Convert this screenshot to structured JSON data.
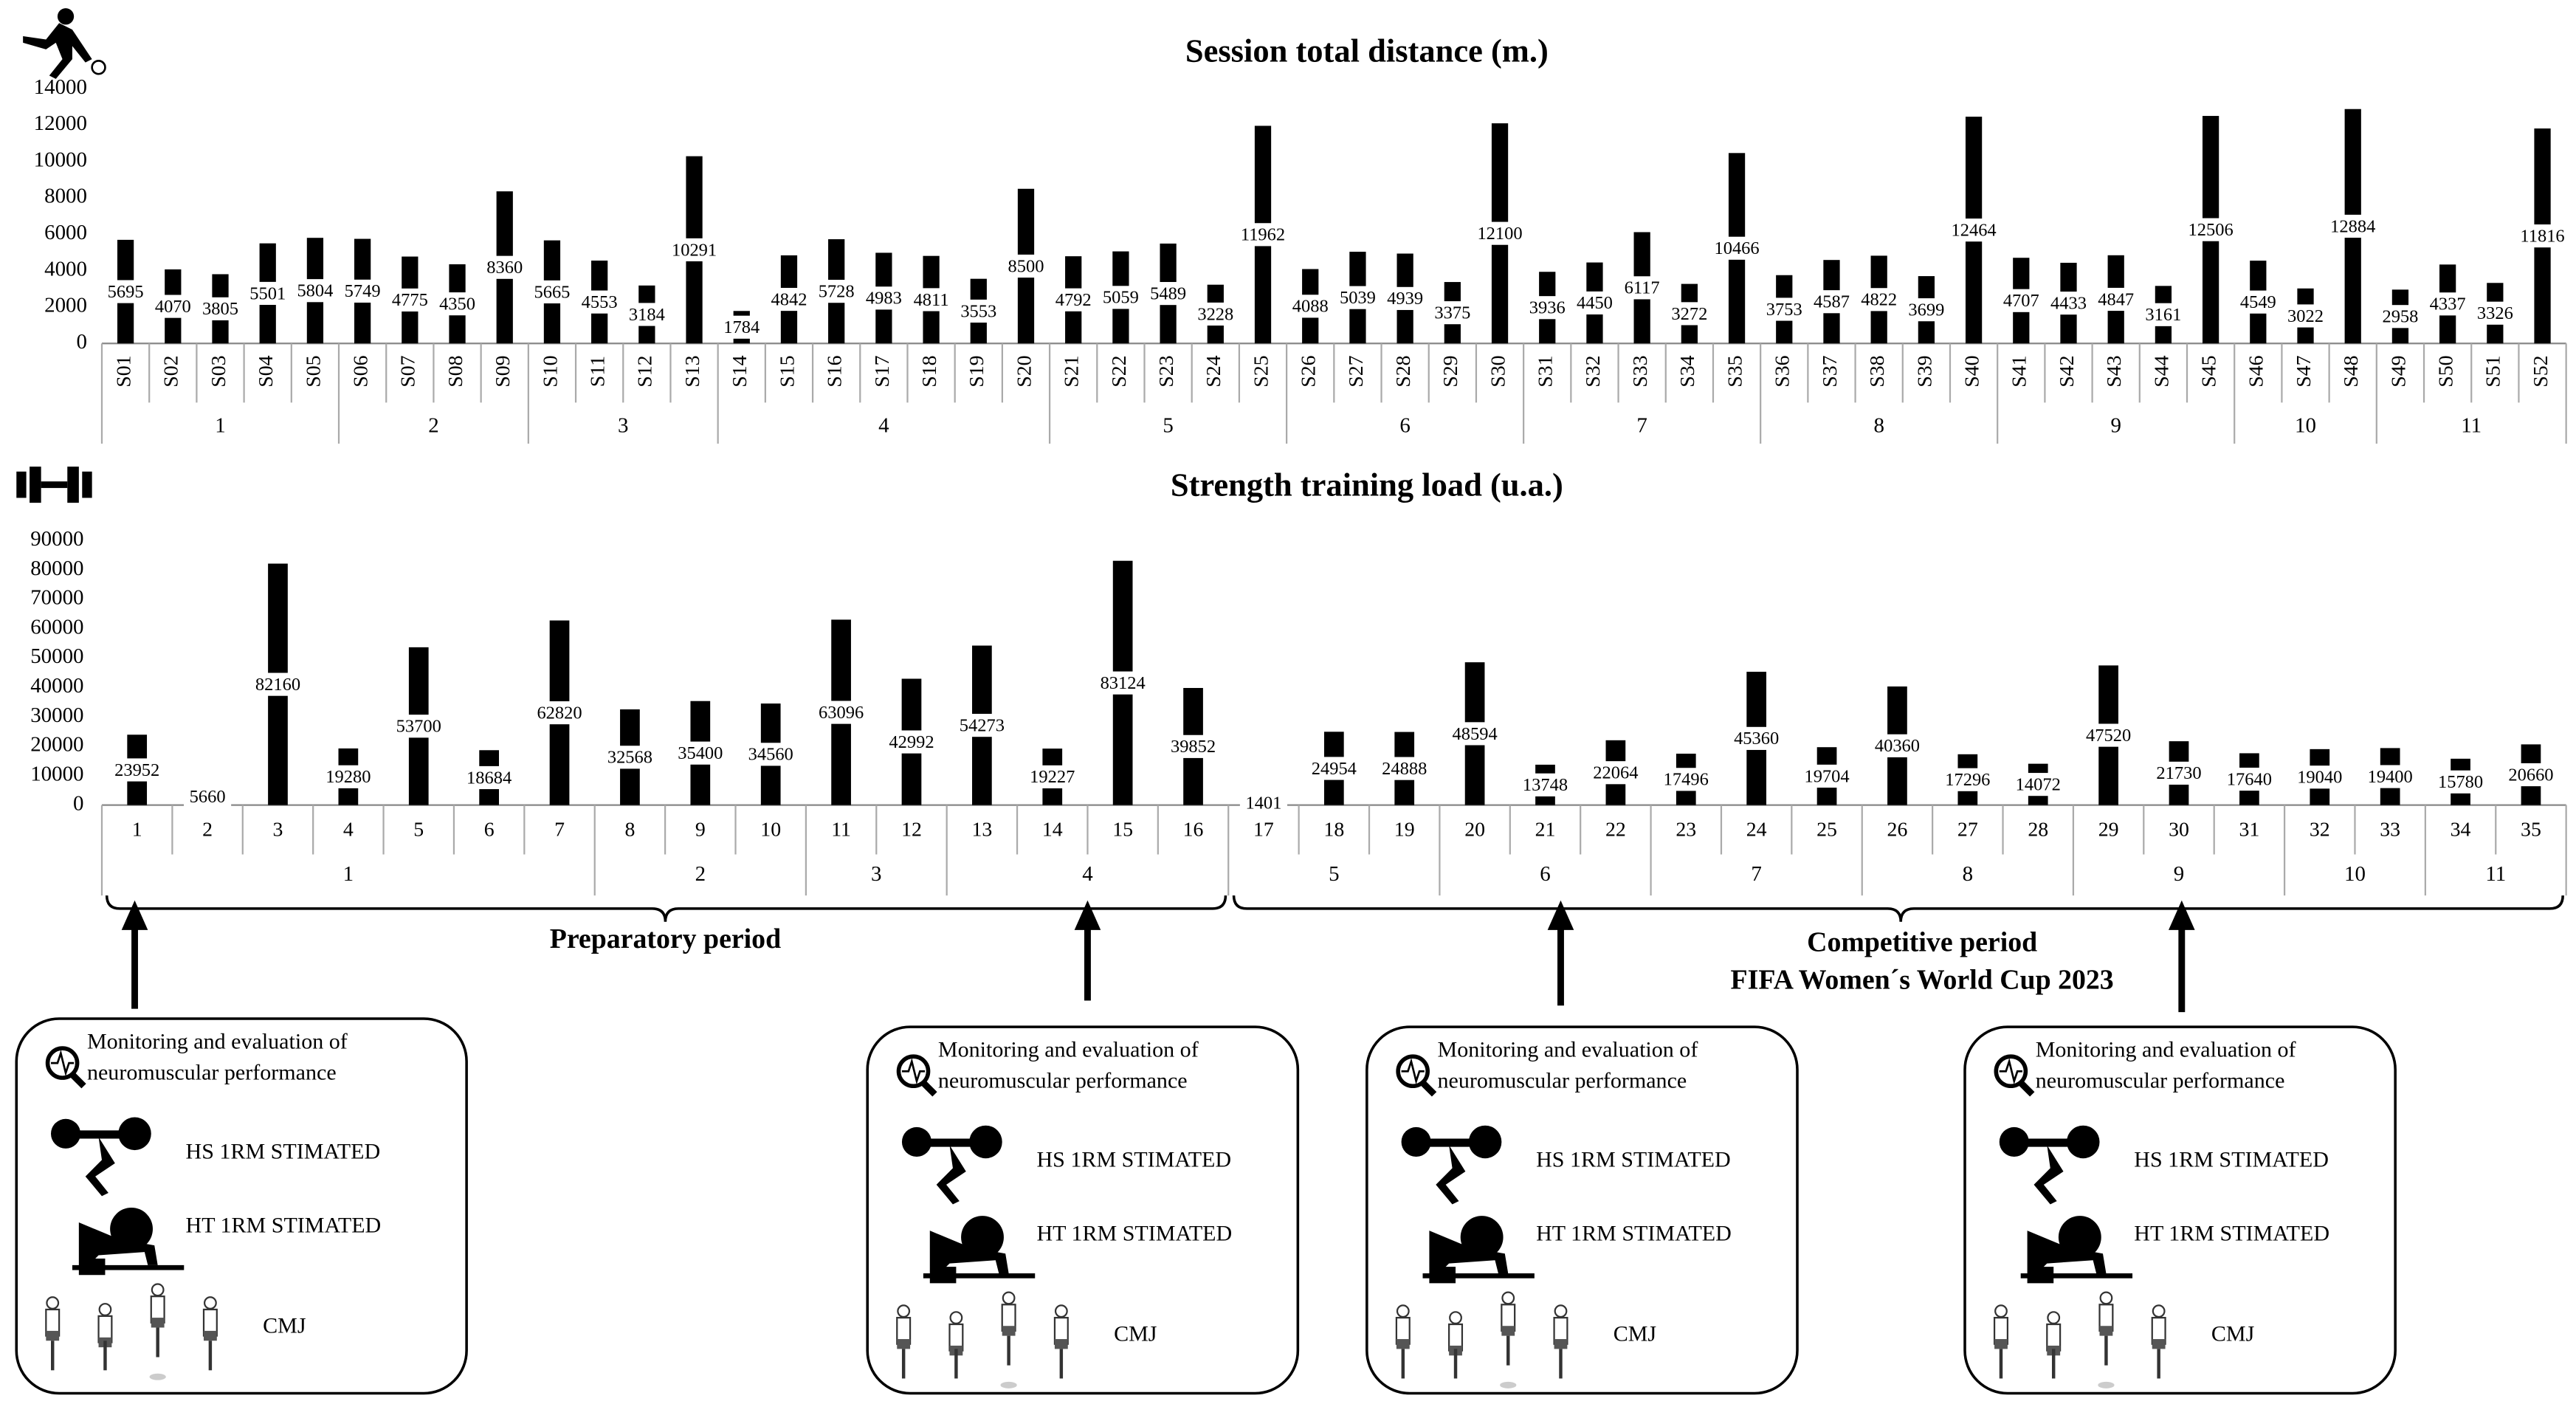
{
  "chart_data": [
    {
      "type": "bar",
      "title": "Session total distance (m.)",
      "categories": [
        "S01",
        "S02",
        "S03",
        "S04",
        "S05",
        "S06",
        "S07",
        "S08",
        "S09",
        "S10",
        "S11",
        "S12",
        "S13",
        "S14",
        "S15",
        "S16",
        "S17",
        "S18",
        "S19",
        "S20",
        "S21",
        "S22",
        "S23",
        "S24",
        "S25",
        "S26",
        "S27",
        "S28",
        "S29",
        "S30",
        "S31",
        "S32",
        "S33",
        "S34",
        "S35",
        "S36",
        "S37",
        "S38",
        "S39",
        "S40",
        "S41",
        "S42",
        "S43",
        "S44",
        "S45",
        "S46",
        "S47",
        "S48",
        "S49",
        "S50",
        "S51",
        "S52"
      ],
      "groups": [
        "1",
        "1",
        "1",
        "1",
        "1",
        "2",
        "2",
        "2",
        "2",
        "3",
        "3",
        "3",
        "3",
        "4",
        "4",
        "4",
        "4",
        "4",
        "4",
        "4",
        "5",
        "5",
        "5",
        "5",
        "5",
        "6",
        "6",
        "6",
        "6",
        "6",
        "7",
        "7",
        "7",
        "7",
        "7",
        "8",
        "8",
        "8",
        "8",
        "8",
        "9",
        "9",
        "9",
        "9",
        "9",
        "10",
        "10",
        "10",
        "11",
        "11",
        "11",
        "11"
      ],
      "values": [
        5695,
        4070,
        3805,
        5501,
        5804,
        5749,
        4775,
        4350,
        8360,
        5665,
        4553,
        3184,
        10291,
        1784,
        4842,
        5728,
        4983,
        4811,
        3553,
        8500,
        4792,
        5059,
        5489,
        3228,
        11962,
        4088,
        5039,
        4939,
        3375,
        12100,
        3936,
        4450,
        6117,
        3272,
        10466,
        3753,
        4587,
        4822,
        3699,
        12464,
        4707,
        4433,
        4847,
        3161,
        12506,
        4549,
        3022,
        12884,
        2958,
        4337,
        3326,
        11816
      ],
      "color": "#000000",
      "ylim": [
        0,
        14000
      ],
      "yticks": [
        0,
        2000,
        4000,
        6000,
        8000,
        10000,
        12000,
        14000
      ]
    },
    {
      "type": "bar",
      "title": "Strength training load (u.a.)",
      "categories": [
        "1",
        "2",
        "3",
        "4",
        "5",
        "6",
        "7",
        "8",
        "9",
        "10",
        "11",
        "12",
        "13",
        "14",
        "15",
        "16",
        "17",
        "18",
        "19",
        "20",
        "21",
        "22",
        "23",
        "24",
        "25",
        "26",
        "27",
        "28",
        "29",
        "30",
        "31",
        "32",
        "33",
        "34",
        "35"
      ],
      "groups": [
        "1",
        "1",
        "1",
        "1",
        "1",
        "1",
        "1",
        "2",
        "2",
        "2",
        "3",
        "3",
        "4",
        "4",
        "4",
        "4",
        "5",
        "5",
        "5",
        "6",
        "6",
        "6",
        "7",
        "7",
        "7",
        "8",
        "8",
        "8",
        "9",
        "9",
        "9",
        "10",
        "10",
        "11",
        "11"
      ],
      "values": [
        23952,
        5660,
        82160,
        19280,
        53700,
        18684,
        62820,
        32568,
        35400,
        34560,
        63096,
        42992,
        54273,
        19227,
        83124,
        39852,
        1401,
        24954,
        24888,
        48594,
        13748,
        22064,
        17496,
        45360,
        19704,
        40360,
        17296,
        14072,
        47520,
        21730,
        17640,
        19040,
        19400,
        15780,
        20660
      ],
      "color": "#000000",
      "ylim": [
        0,
        90000
      ],
      "yticks": [
        0,
        10000,
        20000,
        30000,
        40000,
        50000,
        60000,
        70000,
        80000,
        90000
      ]
    }
  ],
  "periods": [
    {
      "lines": [
        "Preparatory period"
      ]
    },
    {
      "lines": [
        "Competitive period",
        "FIFA Women´s World Cup 2023"
      ]
    }
  ],
  "evaluation_boxes": [
    {
      "title_lines": [
        "Monitoring and evaluation of",
        "neuromuscular performance"
      ],
      "tests": [
        "HS 1RM STIMATED",
        "HT 1RM STIMATED",
        "CMJ"
      ]
    },
    {
      "title_lines": [
        "Monitoring and evaluation of",
        "neuromuscular performance"
      ],
      "tests": [
        "HS 1RM STIMATED",
        "HT 1RM STIMATED",
        "CMJ"
      ]
    },
    {
      "title_lines": [
        "Monitoring and evaluation of",
        "neuromuscular performance"
      ],
      "tests": [
        "HS 1RM STIMATED",
        "HT 1RM STIMATED",
        "CMJ"
      ]
    },
    {
      "title_lines": [
        "Monitoring and evaluation of",
        "neuromuscular performance"
      ],
      "tests": [
        "HS 1RM STIMATED",
        "HT 1RM STIMATED",
        "CMJ"
      ]
    }
  ]
}
